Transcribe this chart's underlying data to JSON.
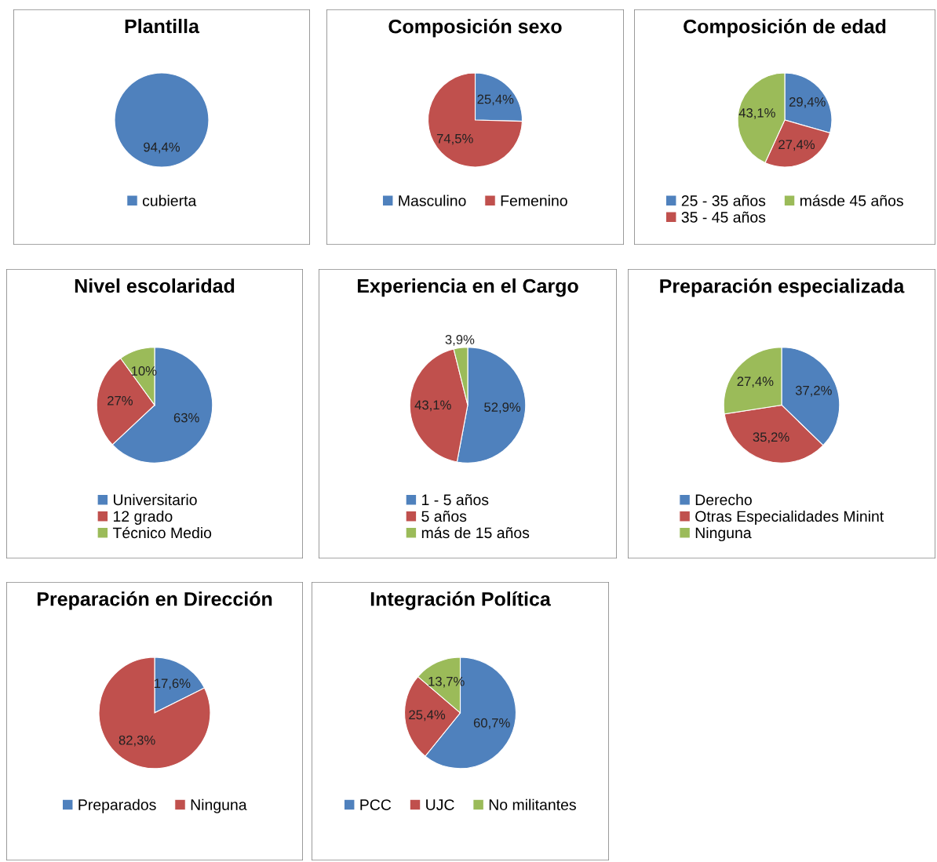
{
  "chart_data": [
    {
      "type": "pie",
      "title": "Plantilla",
      "categories": [
        "cubierta"
      ],
      "values": [
        94.4
      ],
      "value_labels": [
        "94,4%"
      ],
      "colors": [
        "#4f81bd"
      ],
      "legend": "bottom"
    },
    {
      "type": "pie",
      "title": "Composición sexo",
      "categories": [
        "Masculino",
        "Femenino"
      ],
      "values": [
        25.4,
        74.5
      ],
      "value_labels": [
        "25,4%",
        "74,5%"
      ],
      "colors": [
        "#4f81bd",
        "#c0504d"
      ],
      "legend": "bottom"
    },
    {
      "type": "pie",
      "title": "Composición de edad",
      "categories": [
        "25 - 35 años",
        "35 - 45 años",
        "másde 45 años"
      ],
      "values": [
        29.4,
        27.4,
        43.1
      ],
      "value_labels": [
        "29,4%",
        "27,4%",
        "43,1%"
      ],
      "colors": [
        "#4f81bd",
        "#c0504d",
        "#9bbb59"
      ],
      "legend": "bottom"
    },
    {
      "type": "pie",
      "title": "Nivel escolaridad",
      "categories": [
        "Universitario",
        "12 grado",
        "Técnico Medio"
      ],
      "values": [
        63,
        27,
        10
      ],
      "value_labels": [
        "63%",
        "27%",
        "10%"
      ],
      "colors": [
        "#4f81bd",
        "#c0504d",
        "#9bbb59"
      ],
      "legend": "bottom"
    },
    {
      "type": "pie",
      "title": "Experiencia en el Cargo",
      "categories": [
        "1 - 5 años",
        "5 años",
        "más de 15 años"
      ],
      "values": [
        52.9,
        43.1,
        3.9
      ],
      "value_labels": [
        "52,9%",
        "43,1%",
        "3,9%"
      ],
      "colors": [
        "#4f81bd",
        "#c0504d",
        "#9bbb59"
      ],
      "legend": "bottom"
    },
    {
      "type": "pie",
      "title": "Preparación especializada",
      "categories": [
        "Derecho",
        "Otras Especialidades Minint",
        "Ninguna"
      ],
      "values": [
        37.2,
        35.2,
        27.4
      ],
      "value_labels": [
        "37,2%",
        "35,2%",
        "27,4%"
      ],
      "colors": [
        "#4f81bd",
        "#c0504d",
        "#9bbb59"
      ],
      "legend": "bottom"
    },
    {
      "type": "pie",
      "title": "Preparación en Dirección",
      "categories": [
        "Preparados",
        "Ninguna"
      ],
      "values": [
        17.6,
        82.3
      ],
      "value_labels": [
        "17,6%",
        "82,3%"
      ],
      "colors": [
        "#4f81bd",
        "#c0504d"
      ],
      "legend": "bottom"
    },
    {
      "type": "pie",
      "title": "Integración Política",
      "categories": [
        "PCC",
        "UJC",
        "No militantes"
      ],
      "values": [
        60.7,
        25.4,
        13.7
      ],
      "value_labels": [
        "60,7%",
        "25,4%",
        "13,7%"
      ],
      "colors": [
        "#4f81bd",
        "#c0504d",
        "#9bbb59"
      ],
      "legend": "bottom"
    }
  ]
}
